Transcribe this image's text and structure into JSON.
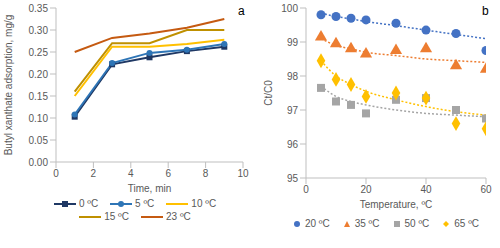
{
  "chart_data": [
    {
      "type": "line",
      "annotation": "a",
      "x_label": "Time, min",
      "y_label": "Butyl xanthate adsorption, mg/g",
      "x": [
        1,
        3,
        5,
        7,
        9
      ],
      "xlim": [
        0,
        10
      ],
      "xticks": [
        0,
        2,
        4,
        6,
        8,
        10
      ],
      "ylim": [
        0,
        0.35
      ],
      "yticks": [
        {
          "value": 0,
          "label": "0.00"
        },
        {
          "value": 0.05,
          "label": "0.05"
        },
        {
          "value": 0.1,
          "label": "0.10"
        },
        {
          "value": 0.15,
          "label": "0.15"
        },
        {
          "value": 0.2,
          "label": "0.20"
        },
        {
          "value": 0.25,
          "label": "0.25"
        },
        {
          "value": 0.3,
          "label": "0.30"
        },
        {
          "value": 0.35,
          "label": "0.35"
        }
      ],
      "grid": false,
      "legend": "bottom",
      "series": [
        {
          "name": "0 ºC",
          "color": "#1f3864",
          "marker": "square",
          "values": [
            0.103,
            0.222,
            0.238,
            0.252,
            0.262
          ]
        },
        {
          "name": "5 ºC",
          "color": "#2e75b6",
          "marker": "circle",
          "values": [
            0.108,
            0.225,
            0.248,
            0.255,
            0.268
          ]
        },
        {
          "name": "10 ºC",
          "color": "#ffc000",
          "marker": "none",
          "values": [
            0.15,
            0.262,
            0.262,
            0.268,
            0.278
          ]
        },
        {
          "name": "15 ºC",
          "color": "#bf9000",
          "marker": "none",
          "values": [
            0.16,
            0.27,
            0.27,
            0.3,
            0.3
          ]
        },
        {
          "name": "23 ºC",
          "color": "#c55a11",
          "marker": "none",
          "values": [
            0.25,
            0.282,
            0.292,
            0.305,
            0.325
          ]
        }
      ]
    },
    {
      "type": "scatter",
      "annotation": "b",
      "x_label": "Temperature, ºC",
      "y_label": "Ct/C0",
      "x": [
        5,
        10,
        15,
        20,
        30,
        40,
        50,
        60
      ],
      "xlim": [
        0,
        60
      ],
      "xticks": [
        0,
        20,
        40,
        60
      ],
      "ylim": [
        95,
        100
      ],
      "yticks": [
        95,
        96,
        97,
        98,
        99,
        100
      ],
      "grid": false,
      "legend": "bottom",
      "series": [
        {
          "name": "20 ºC",
          "color": "#4472c4",
          "marker": "circle",
          "line_style": "dotted",
          "values": [
            99.8,
            99.75,
            99.7,
            99.65,
            99.55,
            99.35,
            99.25,
            98.75
          ],
          "trend": [
            99.85,
            99.75,
            99.68,
            99.6,
            99.48,
            99.35,
            99.22,
            99.1
          ]
        },
        {
          "name": "35 ºC",
          "color": "#ed7d31",
          "marker": "triangle",
          "line_style": "dotted",
          "values": [
            99.15,
            98.95,
            98.8,
            98.65,
            98.75,
            98.8,
            98.3,
            98.2
          ],
          "trend": [
            99.1,
            98.9,
            98.8,
            98.7,
            98.6,
            98.5,
            98.45,
            98.4
          ]
        },
        {
          "name": "50 ºC",
          "color": "#a5a5a5",
          "marker": "square",
          "line_style": "dotted",
          "values": [
            97.65,
            97.25,
            97.15,
            96.9,
            97.3,
            97.35,
            97.0,
            96.75
          ],
          "trend": [
            97.7,
            97.4,
            97.25,
            97.15,
            97.0,
            96.9,
            96.85,
            96.8
          ]
        },
        {
          "name": "65 ºC",
          "color": "#ffc000",
          "marker": "diamond",
          "line_style": "dotted",
          "values": [
            98.45,
            97.9,
            97.75,
            97.4,
            97.5,
            97.35,
            96.6,
            96.45
          ],
          "trend": [
            98.45,
            98.0,
            97.75,
            97.55,
            97.3,
            97.1,
            96.95,
            96.85
          ]
        }
      ]
    }
  ]
}
